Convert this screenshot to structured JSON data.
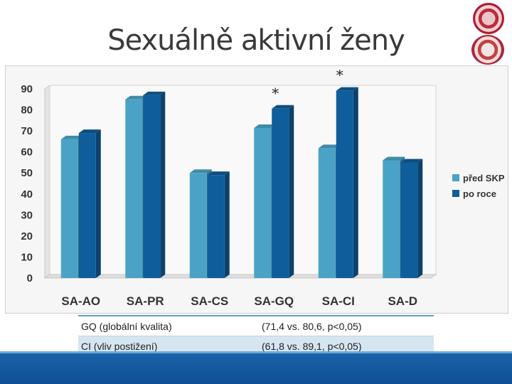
{
  "title": "Sexuálně aktivní ženy",
  "chart_data": {
    "type": "bar",
    "categories": [
      "SA-AO",
      "SA-PR",
      "SA-CS",
      "SA-GQ",
      "SA-CI",
      "SA-D"
    ],
    "series": [
      {
        "name": "před SKP",
        "values": [
          66,
          85,
          50,
          71.4,
          61.8,
          56
        ],
        "color": "#4aa3c6"
      },
      {
        "name": "po roce",
        "values": [
          69,
          87,
          49,
          80.6,
          89.1,
          55
        ],
        "color": "#0f5d9a"
      }
    ],
    "ylim": [
      0,
      90
    ],
    "yticks": [
      "0",
      "10",
      "20",
      "30",
      "40",
      "50",
      "60",
      "70",
      "80",
      "90"
    ],
    "xlabel": "",
    "ylabel": "",
    "grid": false,
    "legend_position": "right",
    "annotations": [
      {
        "category": "SA-GQ",
        "text": "*"
      },
      {
        "category": "SA-CI",
        "text": "*"
      }
    ]
  },
  "table": {
    "rows": [
      {
        "label": "GQ (globální kvalita)",
        "value": "(71,4 vs. 80,6, p<0,05)"
      },
      {
        "label": "CI (vliv postižení)",
        "value": "(61,8 vs. 89,1, p<0,05)"
      }
    ]
  }
}
